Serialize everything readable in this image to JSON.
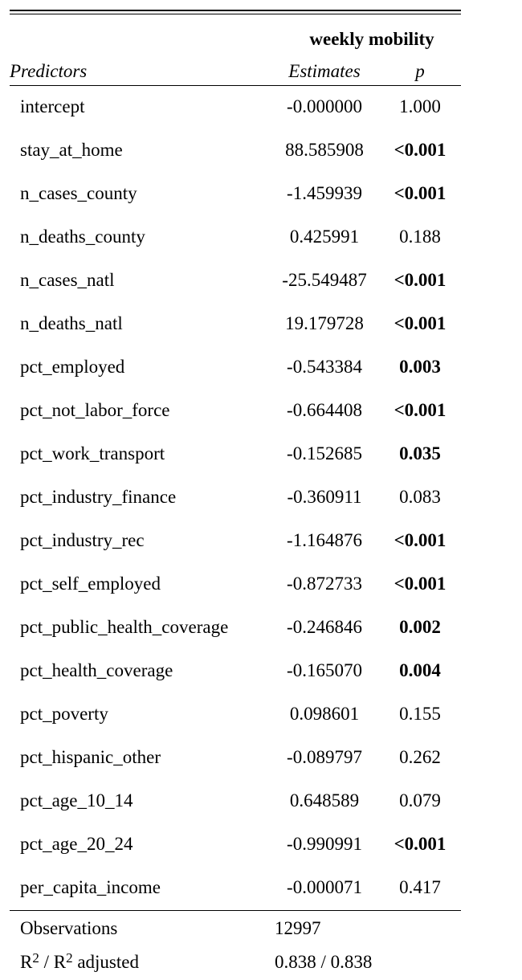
{
  "table": {
    "group_title": "weekly mobility",
    "headers": {
      "predictors": "Predictors",
      "estimates": "Estimates",
      "p": "p"
    },
    "rows": [
      {
        "predictor": "intercept",
        "estimate": "-0.000000",
        "p": "1.000",
        "significant": false
      },
      {
        "predictor": "stay_at_home",
        "estimate": "88.585908",
        "p": "<0.001",
        "significant": true
      },
      {
        "predictor": "n_cases_county",
        "estimate": "-1.459939",
        "p": "<0.001",
        "significant": true
      },
      {
        "predictor": "n_deaths_county",
        "estimate": "0.425991",
        "p": "0.188",
        "significant": false
      },
      {
        "predictor": "n_cases_natl",
        "estimate": "-25.549487",
        "p": "<0.001",
        "significant": true
      },
      {
        "predictor": "n_deaths_natl",
        "estimate": "19.179728",
        "p": "<0.001",
        "significant": true
      },
      {
        "predictor": "pct_employed",
        "estimate": "-0.543384",
        "p": "0.003",
        "significant": true
      },
      {
        "predictor": "pct_not_labor_force",
        "estimate": "-0.664408",
        "p": "<0.001",
        "significant": true
      },
      {
        "predictor": "pct_work_transport",
        "estimate": "-0.152685",
        "p": "0.035",
        "significant": true
      },
      {
        "predictor": "pct_industry_finance",
        "estimate": "-0.360911",
        "p": "0.083",
        "significant": false
      },
      {
        "predictor": "pct_industry_rec",
        "estimate": "-1.164876",
        "p": "<0.001",
        "significant": true
      },
      {
        "predictor": "pct_self_employed",
        "estimate": "-0.872733",
        "p": "<0.001",
        "significant": true
      },
      {
        "predictor": "pct_public_health_coverage",
        "estimate": "-0.246846",
        "p": "0.002",
        "significant": true
      },
      {
        "predictor": "pct_health_coverage",
        "estimate": "-0.165070",
        "p": "0.004",
        "significant": true
      },
      {
        "predictor": "pct_poverty",
        "estimate": "0.098601",
        "p": "0.155",
        "significant": false
      },
      {
        "predictor": "pct_hispanic_other",
        "estimate": "-0.089797",
        "p": "0.262",
        "significant": false
      },
      {
        "predictor": "pct_age_10_14",
        "estimate": "0.648589",
        "p": "0.079",
        "significant": false
      },
      {
        "predictor": "pct_age_20_24",
        "estimate": "-0.990991",
        "p": "<0.001",
        "significant": true
      },
      {
        "predictor": "per_capita_income",
        "estimate": "-0.000071",
        "p": "0.417",
        "significant": false
      }
    ],
    "footer": {
      "observations_label": "Observations",
      "observations_value": "12997",
      "r2_label_r": "R",
      "r2_label_sup1": "2",
      "r2_label_mid": " / R",
      "r2_label_sup2": "2",
      "r2_label_end": " adjusted",
      "r2_value": "0.838 / 0.838"
    }
  }
}
